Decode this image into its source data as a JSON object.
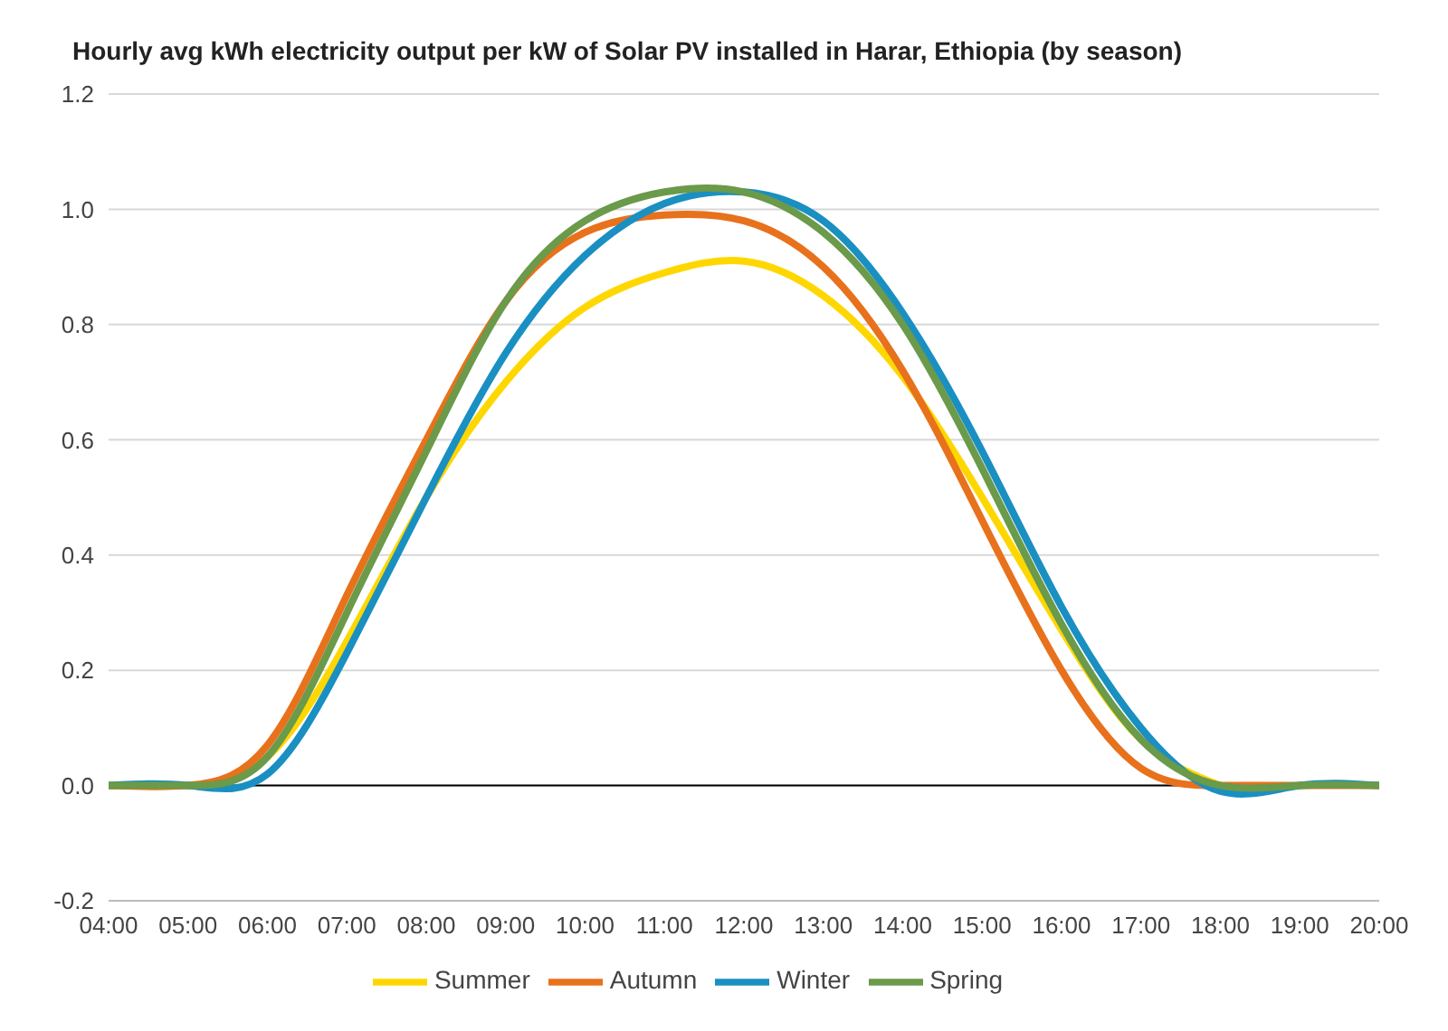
{
  "chart_data": {
    "type": "line",
    "title": "Hourly avg kWh electricity output per kW of Solar PV installed in Harar, Ethiopia (by season)",
    "x": [
      4,
      5,
      6,
      7,
      8,
      9,
      10,
      11,
      12,
      13,
      14,
      15,
      16,
      17,
      18,
      19,
      20
    ],
    "series": [
      {
        "name": "Summer",
        "color": "#ffd700",
        "values": [
          0,
          0,
          0.05,
          0.25,
          0.5,
          0.7,
          0.83,
          0.89,
          0.91,
          0.85,
          0.71,
          0.5,
          0.27,
          0.08,
          0,
          null,
          null
        ]
      },
      {
        "name": "Autumn",
        "color": "#e8711c",
        "values": [
          0,
          0,
          0.07,
          0.33,
          0.6,
          0.84,
          0.96,
          0.99,
          0.98,
          0.9,
          0.72,
          0.46,
          0.2,
          0.03,
          0,
          0,
          0
        ]
      },
      {
        "name": "Winter",
        "color": "#1a8fc2",
        "values": [
          0,
          0,
          0.02,
          0.23,
          0.5,
          0.75,
          0.92,
          1.01,
          1.03,
          0.98,
          0.82,
          0.58,
          0.31,
          0.1,
          -0.01,
          0,
          0
        ]
      },
      {
        "name": "Spring",
        "color": "#6a9a4a",
        "values": [
          0,
          0,
          0.05,
          0.3,
          0.58,
          0.84,
          0.98,
          1.03,
          1.03,
          0.96,
          0.8,
          0.55,
          0.28,
          0.08,
          0,
          0,
          0
        ]
      }
    ],
    "xlim": [
      4,
      20
    ],
    "xticks": [
      {
        "value": 4,
        "label": "04:00"
      },
      {
        "value": 5,
        "label": "05:00"
      },
      {
        "value": 6,
        "label": "06:00"
      },
      {
        "value": 7,
        "label": "07:00"
      },
      {
        "value": 8,
        "label": "08:00"
      },
      {
        "value": 9,
        "label": "09:00"
      },
      {
        "value": 10,
        "label": "10:00"
      },
      {
        "value": 11,
        "label": "11:00"
      },
      {
        "value": 12,
        "label": "12:00"
      },
      {
        "value": 13,
        "label": "13:00"
      },
      {
        "value": 14,
        "label": "14:00"
      },
      {
        "value": 15,
        "label": "15:00"
      },
      {
        "value": 16,
        "label": "16:00"
      },
      {
        "value": 17,
        "label": "17:00"
      },
      {
        "value": 18,
        "label": "18:00"
      },
      {
        "value": 19,
        "label": "19:00"
      },
      {
        "value": 20,
        "label": "20:00"
      }
    ],
    "ylim": [
      -0.2,
      1.2
    ],
    "yticks": [
      {
        "value": -0.2,
        "label": "-0.2"
      },
      {
        "value": 0,
        "label": "0.0"
      },
      {
        "value": 0.2,
        "label": "0.2"
      },
      {
        "value": 0.4,
        "label": "0.4"
      },
      {
        "value": 0.6,
        "label": "0.6"
      },
      {
        "value": 0.8,
        "label": "0.8"
      },
      {
        "value": 1,
        "label": "1.0"
      },
      {
        "value": 1.2,
        "label": "1.2"
      }
    ],
    "ref_lines": [
      {
        "axis": "y",
        "value": 0,
        "color": "#000000"
      }
    ],
    "grid": "y",
    "legend": "bottom",
    "marker": "none",
    "line_style": "solid"
  }
}
